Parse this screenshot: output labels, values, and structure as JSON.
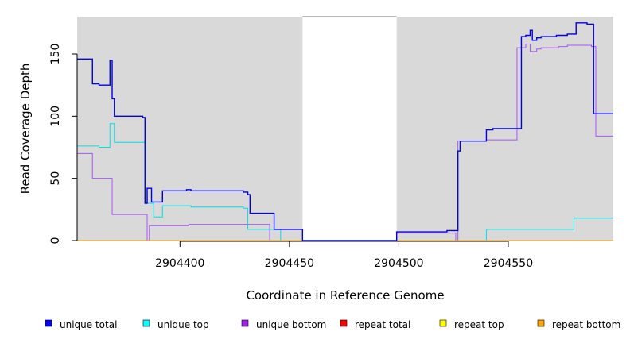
{
  "chart_data": {
    "type": "line",
    "xlabel": "Coordinate in Reference Genome",
    "ylabel": "Read Coverage Depth",
    "xlim": [
      2904353,
      2904598
    ],
    "ylim": [
      0,
      180
    ],
    "x_ticks": [
      2904400,
      2904450,
      2904500,
      2904550
    ],
    "x_tick_labels": [
      "2904400",
      "2904450",
      "2904500",
      "2904550"
    ],
    "y_ticks": [
      0,
      50,
      100,
      150
    ],
    "y_tick_labels": [
      "0",
      "50",
      "100",
      "150"
    ],
    "plot_background": "#d9d9d9",
    "gap_regions": [
      [
        2904456,
        2904499
      ]
    ],
    "step": true,
    "legend_position": "bottom",
    "series": [
      {
        "name": "unique bottom",
        "color": "#a855f7",
        "points": [
          [
            2904353,
            70
          ],
          [
            2904360,
            70
          ],
          [
            2904360,
            50
          ],
          [
            2904369,
            50
          ],
          [
            2904369,
            21
          ],
          [
            2904385,
            21
          ],
          [
            2904385,
            0
          ],
          [
            2904386,
            0
          ],
          [
            2904386,
            12
          ],
          [
            2904404,
            12
          ],
          [
            2904404,
            13
          ],
          [
            2904441,
            13
          ],
          [
            2904441,
            0
          ],
          [
            2904499,
            0
          ],
          [
            2904499,
            6
          ],
          [
            2904526,
            6
          ],
          [
            2904526,
            0
          ],
          [
            2904527,
            0
          ],
          [
            2904527,
            80
          ],
          [
            2904540,
            80
          ],
          [
            2904540,
            81
          ],
          [
            2904554,
            81
          ],
          [
            2904554,
            155
          ],
          [
            2904558,
            155
          ],
          [
            2904558,
            158
          ],
          [
            2904560,
            158
          ],
          [
            2904560,
            152
          ],
          [
            2904563,
            152
          ],
          [
            2904563,
            154
          ],
          [
            2904565,
            154
          ],
          [
            2904565,
            155
          ],
          [
            2904573,
            155
          ],
          [
            2904573,
            156
          ],
          [
            2904577,
            156
          ],
          [
            2904577,
            157
          ],
          [
            2904588,
            157
          ],
          [
            2904588,
            156
          ],
          [
            2904590,
            156
          ],
          [
            2904590,
            84
          ],
          [
            2904598,
            84
          ]
        ]
      },
      {
        "name": "unique top",
        "color": "#00e0e0",
        "points": [
          [
            2904353,
            76
          ],
          [
            2904363,
            76
          ],
          [
            2904363,
            75
          ],
          [
            2904368,
            75
          ],
          [
            2904368,
            94
          ],
          [
            2904370,
            94
          ],
          [
            2904370,
            79
          ],
          [
            2904384,
            79
          ],
          [
            2904384,
            30
          ],
          [
            2904388,
            30
          ],
          [
            2904388,
            19
          ],
          [
            2904392,
            19
          ],
          [
            2904392,
            28
          ],
          [
            2904405,
            28
          ],
          [
            2904405,
            27
          ],
          [
            2904429,
            27
          ],
          [
            2904429,
            26
          ],
          [
            2904431,
            26
          ],
          [
            2904431,
            9
          ],
          [
            2904446,
            9
          ],
          [
            2904446,
            0
          ],
          [
            2904540,
            0
          ],
          [
            2904540,
            9
          ],
          [
            2904580,
            9
          ],
          [
            2904580,
            18
          ],
          [
            2904598,
            18
          ]
        ]
      },
      {
        "name": "repeat total",
        "color": "#ff0000",
        "points": [
          [
            2904353,
            0
          ],
          [
            2904598,
            0
          ]
        ]
      },
      {
        "name": "repeat top",
        "color": "#ffff00",
        "points": [
          [
            2904353,
            0
          ],
          [
            2904598,
            0
          ]
        ]
      },
      {
        "name": "repeat bottom",
        "color": "#ffa500",
        "points": [
          [
            2904353,
            0
          ],
          [
            2904598,
            0
          ]
        ]
      },
      {
        "name": "unique total",
        "color": "#0000e0",
        "points": [
          [
            2904353,
            146
          ],
          [
            2904360,
            146
          ],
          [
            2904360,
            126
          ],
          [
            2904363,
            126
          ],
          [
            2904363,
            125
          ],
          [
            2904368,
            125
          ],
          [
            2904368,
            145
          ],
          [
            2904369,
            145
          ],
          [
            2904369,
            114
          ],
          [
            2904370,
            114
          ],
          [
            2904370,
            100
          ],
          [
            2904383,
            100
          ],
          [
            2904383,
            99
          ],
          [
            2904384,
            99
          ],
          [
            2904384,
            30
          ],
          [
            2904385,
            30
          ],
          [
            2904385,
            42
          ],
          [
            2904387,
            42
          ],
          [
            2904387,
            31
          ],
          [
            2904392,
            31
          ],
          [
            2904392,
            40
          ],
          [
            2904403,
            40
          ],
          [
            2904403,
            41
          ],
          [
            2904405,
            41
          ],
          [
            2904405,
            40
          ],
          [
            2904429,
            40
          ],
          [
            2904429,
            39
          ],
          [
            2904431,
            39
          ],
          [
            2904431,
            37
          ],
          [
            2904432,
            37
          ],
          [
            2904432,
            22
          ],
          [
            2904443,
            22
          ],
          [
            2904443,
            9
          ],
          [
            2904456,
            9
          ],
          [
            2904456,
            0
          ],
          [
            2904499,
            0
          ],
          [
            2904499,
            7
          ],
          [
            2904522,
            7
          ],
          [
            2904522,
            8
          ],
          [
            2904527,
            8
          ],
          [
            2904527,
            72
          ],
          [
            2904528,
            72
          ],
          [
            2904528,
            80
          ],
          [
            2904540,
            80
          ],
          [
            2904540,
            89
          ],
          [
            2904543,
            89
          ],
          [
            2904543,
            90
          ],
          [
            2904556,
            90
          ],
          [
            2904556,
            164
          ],
          [
            2904558,
            164
          ],
          [
            2904558,
            165
          ],
          [
            2904560,
            165
          ],
          [
            2904560,
            169
          ],
          [
            2904561,
            169
          ],
          [
            2904561,
            161
          ],
          [
            2904563,
            161
          ],
          [
            2904563,
            163
          ],
          [
            2904565,
            163
          ],
          [
            2904565,
            164
          ],
          [
            2904572,
            164
          ],
          [
            2904572,
            165
          ],
          [
            2904577,
            165
          ],
          [
            2904577,
            166
          ],
          [
            2904581,
            166
          ],
          [
            2904581,
            175
          ],
          [
            2904586,
            175
          ],
          [
            2904586,
            174
          ],
          [
            2904589,
            174
          ],
          [
            2904589,
            102
          ],
          [
            2904598,
            102
          ]
        ]
      }
    ],
    "legend": [
      {
        "label": "unique total",
        "color": "#0000ff"
      },
      {
        "label": "unique top",
        "color": "#00ffff"
      },
      {
        "label": "unique bottom",
        "color": "#a020f0"
      },
      {
        "label": "repeat total",
        "color": "#ff0000"
      },
      {
        "label": "repeat top",
        "color": "#ffff00"
      },
      {
        "label": "repeat bottom",
        "color": "#ffa500"
      }
    ]
  }
}
